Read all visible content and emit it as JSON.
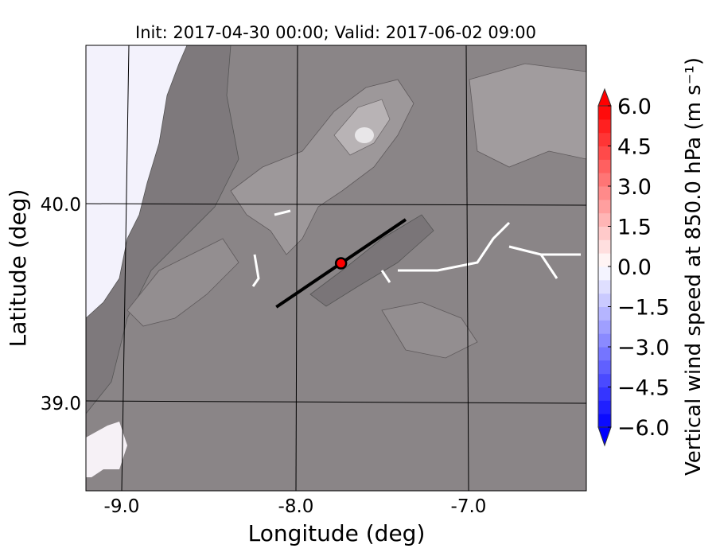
{
  "chart_data": {
    "type": "map",
    "title": "Init: 2017-04-30 00:00; Valid: 2017-06-02 09:00",
    "xlabel": "Longitude (deg)",
    "ylabel": "Latitude (deg)",
    "xlim": [
      -9.25,
      -6.35
    ],
    "ylim": [
      38.55,
      40.8
    ],
    "xticks": [
      {
        "value": -9.0,
        "label": "-9.0"
      },
      {
        "value": -8.0,
        "label": "-8.0"
      },
      {
        "value": -7.0,
        "label": "-7.0"
      }
    ],
    "yticks": [
      {
        "value": 40.0,
        "label": "40.0"
      },
      {
        "value": 39.0,
        "label": "39.0"
      }
    ],
    "grid": true,
    "background": "terrain shaded relief (gray)",
    "cross_section_line": {
      "start": [
        -8.12,
        39.48
      ],
      "end": [
        -7.36,
        39.92
      ],
      "color": "#000000"
    },
    "marker": {
      "lon": -7.74,
      "lat": 39.7,
      "color": "#ff0000"
    },
    "colorbar": {
      "label": "Vertical wind speed at 850.0 hPa (m s⁻¹)",
      "min": -6.0,
      "max": 6.0,
      "step": 0.5,
      "extend": "both",
      "colormap": "bwr",
      "ticks": [
        "6.0",
        "4.5",
        "3.0",
        "1.5",
        "0.0",
        "−1.5",
        "−3.0",
        "−4.5",
        "−6.0"
      ],
      "tick_values": [
        6.0,
        4.5,
        3.0,
        1.5,
        0.0,
        -1.5,
        -3.0,
        -4.5,
        -6.0
      ],
      "min_color": "#0000ff",
      "max_color": "#ff0000"
    }
  }
}
